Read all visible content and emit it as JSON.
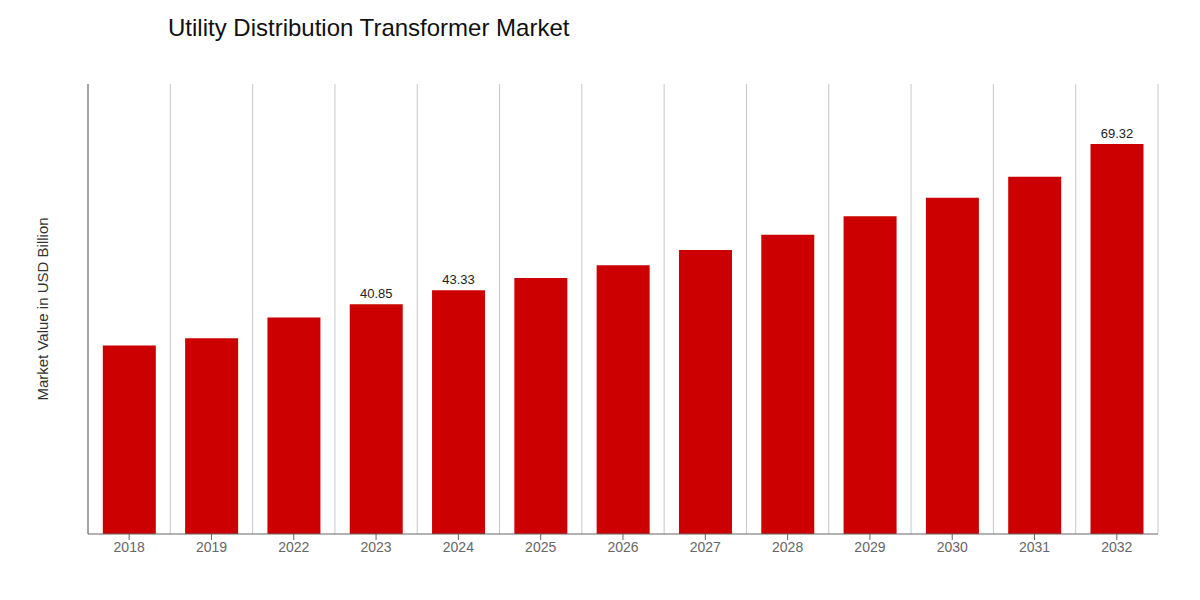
{
  "chart_data": {
    "type": "bar",
    "title": "Utility Distribution Transformer Market",
    "ylabel": "Market Value in USD Billion",
    "categories": [
      "2018",
      "2019",
      "2022",
      "2023",
      "2024",
      "2025",
      "2026",
      "2027",
      "2028",
      "2029",
      "2030",
      "2031",
      "2032"
    ],
    "values": [
      33.5,
      34.8,
      38.5,
      40.85,
      43.33,
      45.5,
      47.8,
      50.5,
      53.2,
      56.5,
      59.8,
      63.5,
      69.32
    ],
    "value_labels": [
      null,
      null,
      null,
      "40.85",
      "43.33",
      null,
      null,
      null,
      null,
      null,
      null,
      null,
      "69.32"
    ],
    "color": "#CC0000",
    "ylim": [
      0,
      80
    ],
    "tick_labels": "x",
    "grid": true
  }
}
